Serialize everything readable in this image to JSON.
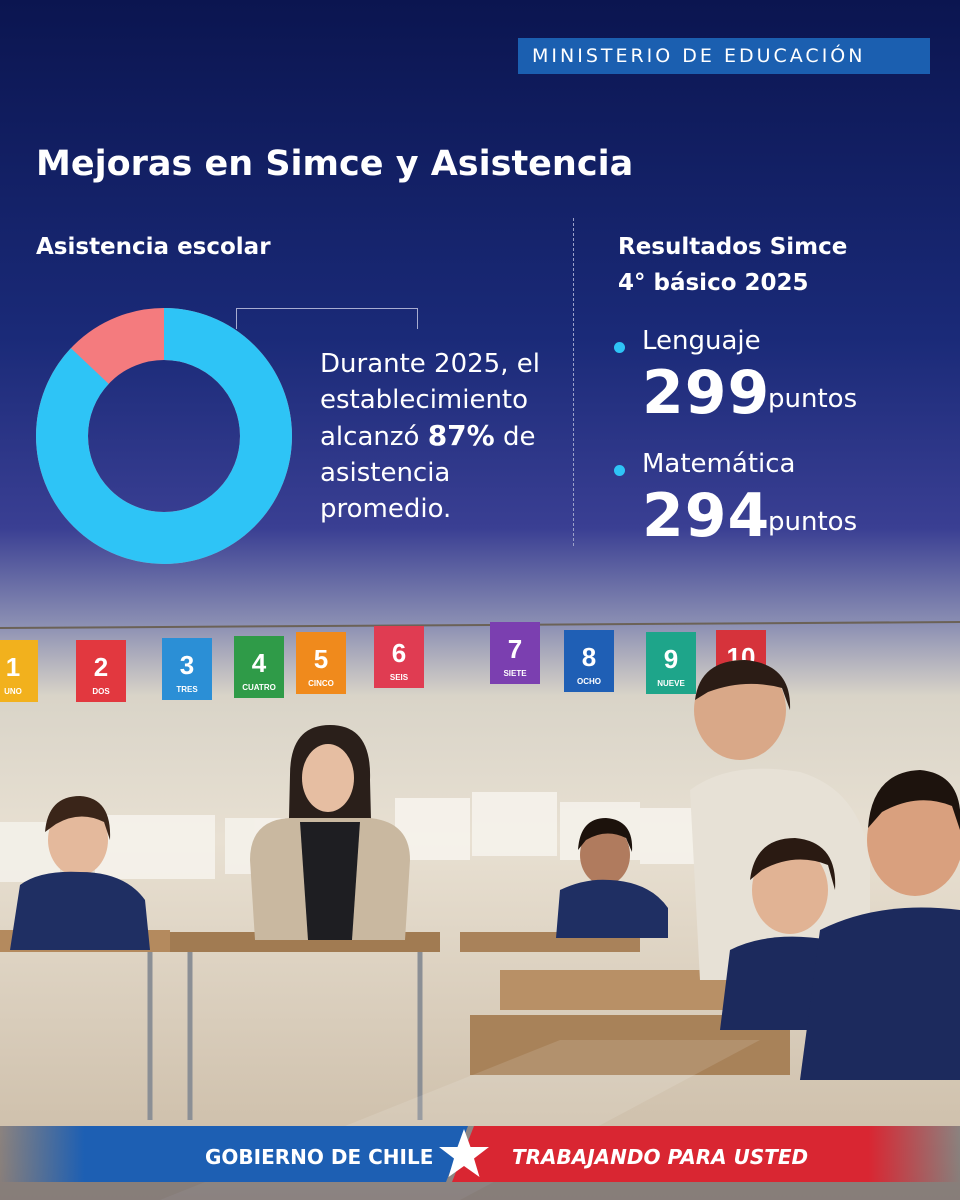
{
  "header": {
    "ministry": "MINISTERIO DE EDUCACIÓN"
  },
  "title": "Mejoras en Simce y Asistencia",
  "attendance": {
    "label": "Asistencia escolar",
    "percent": 87,
    "text_before": "Durante 2025, el establecimiento alcanzó ",
    "text_highlight": "87%",
    "text_after": " de asistencia promedio."
  },
  "simce": {
    "heading_line1": "Resultados Simce",
    "heading_line2": "4° básico 2025",
    "results": [
      {
        "subject": "Lenguaje",
        "score": "299",
        "unit": "puntos"
      },
      {
        "subject": "Matemática",
        "score": "294",
        "unit": "puntos"
      }
    ]
  },
  "classroom": {
    "number_cards": [
      {
        "n": "1",
        "w": "UNO",
        "color": "#f2b11d"
      },
      {
        "n": "2",
        "w": "DOS",
        "color": "#e2383f"
      },
      {
        "n": "3",
        "w": "TRES",
        "color": "#2b8fd6"
      },
      {
        "n": "4",
        "w": "CUATRO",
        "color": "#2f9b48"
      },
      {
        "n": "5",
        "w": "CINCO",
        "color": "#f08a1c"
      },
      {
        "n": "6",
        "w": "SEIS",
        "color": "#e03c52"
      },
      {
        "n": "7",
        "w": "SIETE",
        "color": "#7b3fb0"
      },
      {
        "n": "8",
        "w": "OCHO",
        "color": "#1f5fb5"
      },
      {
        "n": "9",
        "w": "NUEVE",
        "color": "#1ea58a"
      },
      {
        "n": "10",
        "w": "",
        "color": "#d6333b"
      }
    ]
  },
  "footer": {
    "left": "GOBIERNO DE CHILE",
    "right": "TRABAJANDO PARA USTED"
  },
  "colors": {
    "accent": "#2ec4f6",
    "donut_rest": "#f47b7e",
    "chip": "#1b5fb0",
    "footer_blue": "#1d5fb3",
    "footer_red": "#d92632"
  }
}
